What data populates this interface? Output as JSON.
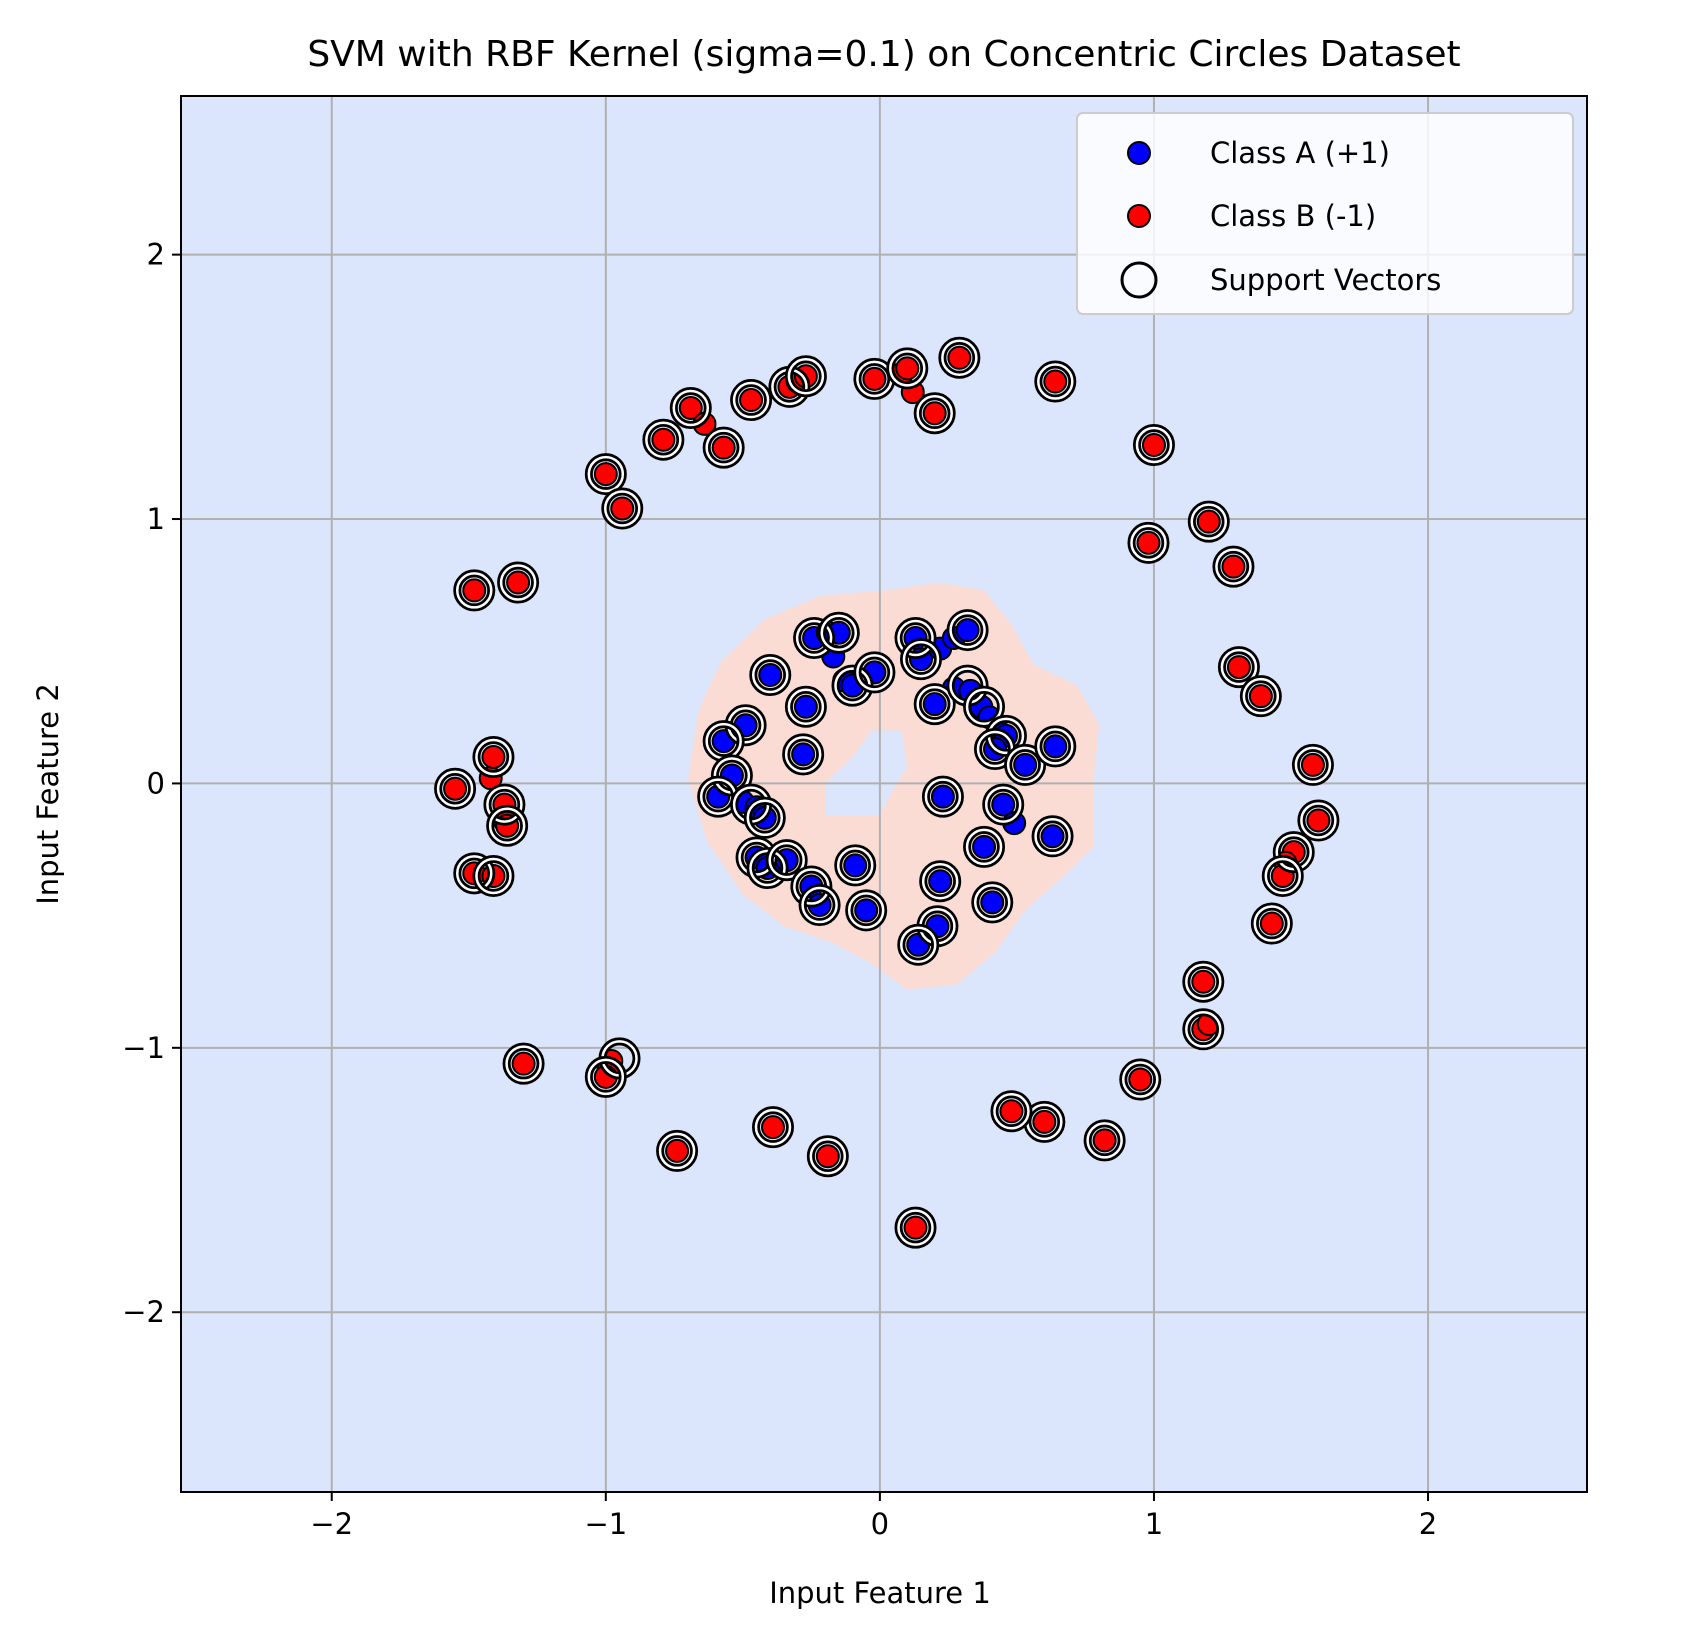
{
  "chart_data": {
    "type": "scatter",
    "title": "SVM with RBF Kernel (sigma=0.1) on Concentric Circles Dataset",
    "xlabel": "Input Feature 1",
    "ylabel": "Input Feature 2",
    "xlim": [
      -2.55,
      2.58
    ],
    "ylim": [
      -2.68,
      2.6
    ],
    "xticks": [
      -2,
      -1,
      0,
      1,
      2
    ],
    "yticks": [
      -2,
      -1,
      0,
      1,
      2
    ],
    "xtick_labels": [
      "−2",
      "−1",
      "0",
      "1",
      "2"
    ],
    "ytick_labels": [
      "−2",
      "−1",
      "0",
      "1",
      "2"
    ],
    "grid": true,
    "legend_position": "top-right",
    "colors": {
      "negative_region": "#dbe5fc",
      "positive_region": "#fadcd4",
      "class_a": "#0000ff",
      "class_b": "#ff0000",
      "support_vector_edge": "#000000",
      "grid": "#b0b0b0"
    },
    "legend": {
      "class_a": "Class A (+1)",
      "class_b": "Class B (-1)",
      "support_vectors": "Support Vectors"
    },
    "decision_region_positive": [
      [
        -0.22,
        0.71
      ],
      [
        0.02,
        0.73
      ],
      [
        0.22,
        0.76
      ],
      [
        0.38,
        0.73
      ],
      [
        0.48,
        0.6
      ],
      [
        0.56,
        0.45
      ],
      [
        0.72,
        0.37
      ],
      [
        0.8,
        0.22
      ],
      [
        0.78,
        0.02
      ],
      [
        0.78,
        -0.24
      ],
      [
        0.66,
        -0.36
      ],
      [
        0.53,
        -0.48
      ],
      [
        0.42,
        -0.64
      ],
      [
        0.28,
        -0.76
      ],
      [
        0.1,
        -0.78
      ],
      [
        -0.03,
        -0.68
      ],
      [
        -0.18,
        -0.6
      ],
      [
        -0.35,
        -0.54
      ],
      [
        -0.5,
        -0.42
      ],
      [
        -0.63,
        -0.22
      ],
      [
        -0.7,
        0.02
      ],
      [
        -0.66,
        0.28
      ],
      [
        -0.58,
        0.46
      ],
      [
        -0.42,
        0.62
      ]
    ],
    "decision_region_negative_hole": [
      [
        -0.03,
        0.2
      ],
      [
        0.08,
        0.2
      ],
      [
        0.1,
        0.06
      ],
      [
        0.05,
        -0.02
      ],
      [
        0.0,
        -0.12
      ],
      [
        -0.2,
        -0.12
      ],
      [
        -0.2,
        0.0
      ],
      [
        -0.1,
        0.1
      ]
    ],
    "series": [
      {
        "name": "Class A (+1)",
        "points": [
          [
            -0.24,
            0.55
          ],
          [
            -0.19,
            0.57
          ],
          [
            -0.15,
            0.57
          ],
          [
            -0.17,
            0.48
          ],
          [
            -0.13,
            0.39
          ],
          [
            -0.1,
            0.37
          ],
          [
            -0.02,
            0.42
          ],
          [
            -0.4,
            0.41
          ],
          [
            -0.27,
            0.29
          ],
          [
            -0.49,
            0.22
          ],
          [
            -0.57,
            0.16
          ],
          [
            -0.54,
            0.03
          ],
          [
            -0.28,
            0.11
          ],
          [
            -0.59,
            -0.05
          ],
          [
            -0.5,
            -0.07
          ],
          [
            -0.45,
            -0.09
          ],
          [
            -0.42,
            -0.13
          ],
          [
            -0.45,
            -0.28
          ],
          [
            -0.41,
            -0.32
          ],
          [
            -0.37,
            -0.31
          ],
          [
            -0.34,
            -0.29
          ],
          [
            -0.25,
            -0.39
          ],
          [
            -0.22,
            -0.46
          ],
          [
            -0.09,
            -0.31
          ],
          [
            -0.05,
            -0.48
          ],
          [
            0.13,
            0.55
          ],
          [
            0.15,
            0.47
          ],
          [
            0.22,
            0.51
          ],
          [
            0.27,
            0.55
          ],
          [
            0.32,
            0.58
          ],
          [
            0.2,
            0.3
          ],
          [
            0.27,
            0.36
          ],
          [
            0.33,
            0.35
          ],
          [
            0.37,
            0.29
          ],
          [
            0.4,
            0.25
          ],
          [
            0.44,
            0.19
          ],
          [
            0.46,
            0.18
          ],
          [
            0.42,
            0.13
          ],
          [
            0.53,
            0.07
          ],
          [
            0.64,
            0.14
          ],
          [
            0.23,
            -0.05
          ],
          [
            0.45,
            -0.08
          ],
          [
            0.49,
            -0.15
          ],
          [
            0.63,
            -0.2
          ],
          [
            0.38,
            -0.24
          ],
          [
            0.22,
            -0.37
          ],
          [
            0.41,
            -0.45
          ],
          [
            0.21,
            -0.54
          ],
          [
            0.14,
            -0.61
          ]
        ]
      },
      {
        "name": "Class B (-1)",
        "points": [
          [
            -1.0,
            1.17
          ],
          [
            -0.94,
            1.04
          ],
          [
            -0.79,
            1.3
          ],
          [
            -0.69,
            1.42
          ],
          [
            -0.64,
            1.36
          ],
          [
            -0.57,
            1.27
          ],
          [
            -0.47,
            1.45
          ],
          [
            -0.33,
            1.5
          ],
          [
            -0.3,
            1.52
          ],
          [
            -0.27,
            1.54
          ],
          [
            -0.02,
            1.53
          ],
          [
            0.08,
            1.55
          ],
          [
            0.1,
            1.57
          ],
          [
            0.12,
            1.48
          ],
          [
            0.2,
            1.4
          ],
          [
            0.29,
            1.61
          ],
          [
            0.64,
            1.52
          ],
          [
            1.0,
            1.28
          ],
          [
            0.98,
            0.91
          ],
          [
            1.2,
            0.99
          ],
          [
            1.29,
            0.82
          ],
          [
            1.31,
            0.44
          ],
          [
            1.39,
            0.33
          ],
          [
            1.58,
            0.07
          ],
          [
            1.6,
            -0.14
          ],
          [
            1.51,
            -0.26
          ],
          [
            1.48,
            -0.3
          ],
          [
            1.47,
            -0.35
          ],
          [
            1.43,
            -0.53
          ],
          [
            1.18,
            -0.75
          ],
          [
            1.18,
            -0.93
          ],
          [
            1.2,
            -0.91
          ],
          [
            0.95,
            -1.12
          ],
          [
            0.82,
            -1.35
          ],
          [
            0.6,
            -1.28
          ],
          [
            0.48,
            -1.24
          ],
          [
            0.13,
            -1.68
          ],
          [
            -0.19,
            -1.41
          ],
          [
            -0.39,
            -1.3
          ],
          [
            -0.74,
            -1.39
          ],
          [
            -0.98,
            -1.05
          ],
          [
            -0.99,
            -1.08
          ],
          [
            -1.0,
            -1.11
          ],
          [
            -1.3,
            -1.06
          ],
          [
            -1.48,
            -0.34
          ],
          [
            -1.41,
            -0.35
          ],
          [
            -1.55,
            -0.02
          ],
          [
            -1.42,
            0.02
          ],
          [
            -1.41,
            0.1
          ],
          [
            -1.37,
            -0.08
          ],
          [
            -1.37,
            -0.14
          ],
          [
            -1.36,
            -0.16
          ],
          [
            -1.48,
            0.73
          ],
          [
            -1.32,
            0.76
          ]
        ]
      }
    ],
    "support_vectors": [
      [
        -0.24,
        0.55
      ],
      [
        -0.15,
        0.57
      ],
      [
        -0.1,
        0.37
      ],
      [
        -0.02,
        0.42
      ],
      [
        -0.4,
        0.41
      ],
      [
        -0.27,
        0.29
      ],
      [
        -0.49,
        0.22
      ],
      [
        -0.57,
        0.16
      ],
      [
        -0.54,
        0.03
      ],
      [
        -0.28,
        0.11
      ],
      [
        -0.59,
        -0.05
      ],
      [
        -0.47,
        -0.08
      ],
      [
        -0.42,
        -0.13
      ],
      [
        -0.45,
        -0.28
      ],
      [
        -0.41,
        -0.32
      ],
      [
        -0.34,
        -0.29
      ],
      [
        -0.25,
        -0.39
      ],
      [
        -0.22,
        -0.46
      ],
      [
        -0.09,
        -0.31
      ],
      [
        -0.05,
        -0.48
      ],
      [
        0.13,
        0.55
      ],
      [
        0.15,
        0.47
      ],
      [
        0.32,
        0.58
      ],
      [
        0.2,
        0.3
      ],
      [
        0.32,
        0.37
      ],
      [
        0.38,
        0.29
      ],
      [
        0.46,
        0.18
      ],
      [
        0.42,
        0.13
      ],
      [
        0.53,
        0.07
      ],
      [
        0.64,
        0.14
      ],
      [
        0.23,
        -0.05
      ],
      [
        0.45,
        -0.08
      ],
      [
        0.63,
        -0.2
      ],
      [
        0.38,
        -0.24
      ],
      [
        0.22,
        -0.37
      ],
      [
        0.41,
        -0.45
      ],
      [
        0.21,
        -0.54
      ],
      [
        0.14,
        -0.61
      ],
      [
        -1.0,
        1.17
      ],
      [
        -0.94,
        1.04
      ],
      [
        -0.79,
        1.3
      ],
      [
        -0.69,
        1.42
      ],
      [
        -0.57,
        1.27
      ],
      [
        -0.47,
        1.45
      ],
      [
        -0.33,
        1.5
      ],
      [
        -0.27,
        1.54
      ],
      [
        -0.02,
        1.53
      ],
      [
        0.1,
        1.57
      ],
      [
        0.2,
        1.4
      ],
      [
        0.29,
        1.61
      ],
      [
        0.64,
        1.52
      ],
      [
        1.0,
        1.28
      ],
      [
        0.98,
        0.91
      ],
      [
        1.2,
        0.99
      ],
      [
        1.29,
        0.82
      ],
      [
        1.31,
        0.44
      ],
      [
        1.39,
        0.33
      ],
      [
        1.58,
        0.07
      ],
      [
        1.6,
        -0.14
      ],
      [
        1.51,
        -0.26
      ],
      [
        1.47,
        -0.35
      ],
      [
        1.43,
        -0.53
      ],
      [
        1.18,
        -0.75
      ],
      [
        1.18,
        -0.93
      ],
      [
        0.95,
        -1.12
      ],
      [
        0.82,
        -1.35
      ],
      [
        0.6,
        -1.28
      ],
      [
        0.48,
        -1.24
      ],
      [
        0.13,
        -1.68
      ],
      [
        -0.19,
        -1.41
      ],
      [
        -0.39,
        -1.3
      ],
      [
        -0.74,
        -1.39
      ],
      [
        -0.95,
        -1.04
      ],
      [
        -1.0,
        -1.11
      ],
      [
        -1.3,
        -1.06
      ],
      [
        -1.48,
        -0.34
      ],
      [
        -1.41,
        -0.35
      ],
      [
        -1.55,
        -0.02
      ],
      [
        -1.41,
        0.1
      ],
      [
        -1.37,
        -0.08
      ],
      [
        -1.36,
        -0.16
      ],
      [
        -1.48,
        0.73
      ],
      [
        -1.32,
        0.76
      ]
    ]
  }
}
